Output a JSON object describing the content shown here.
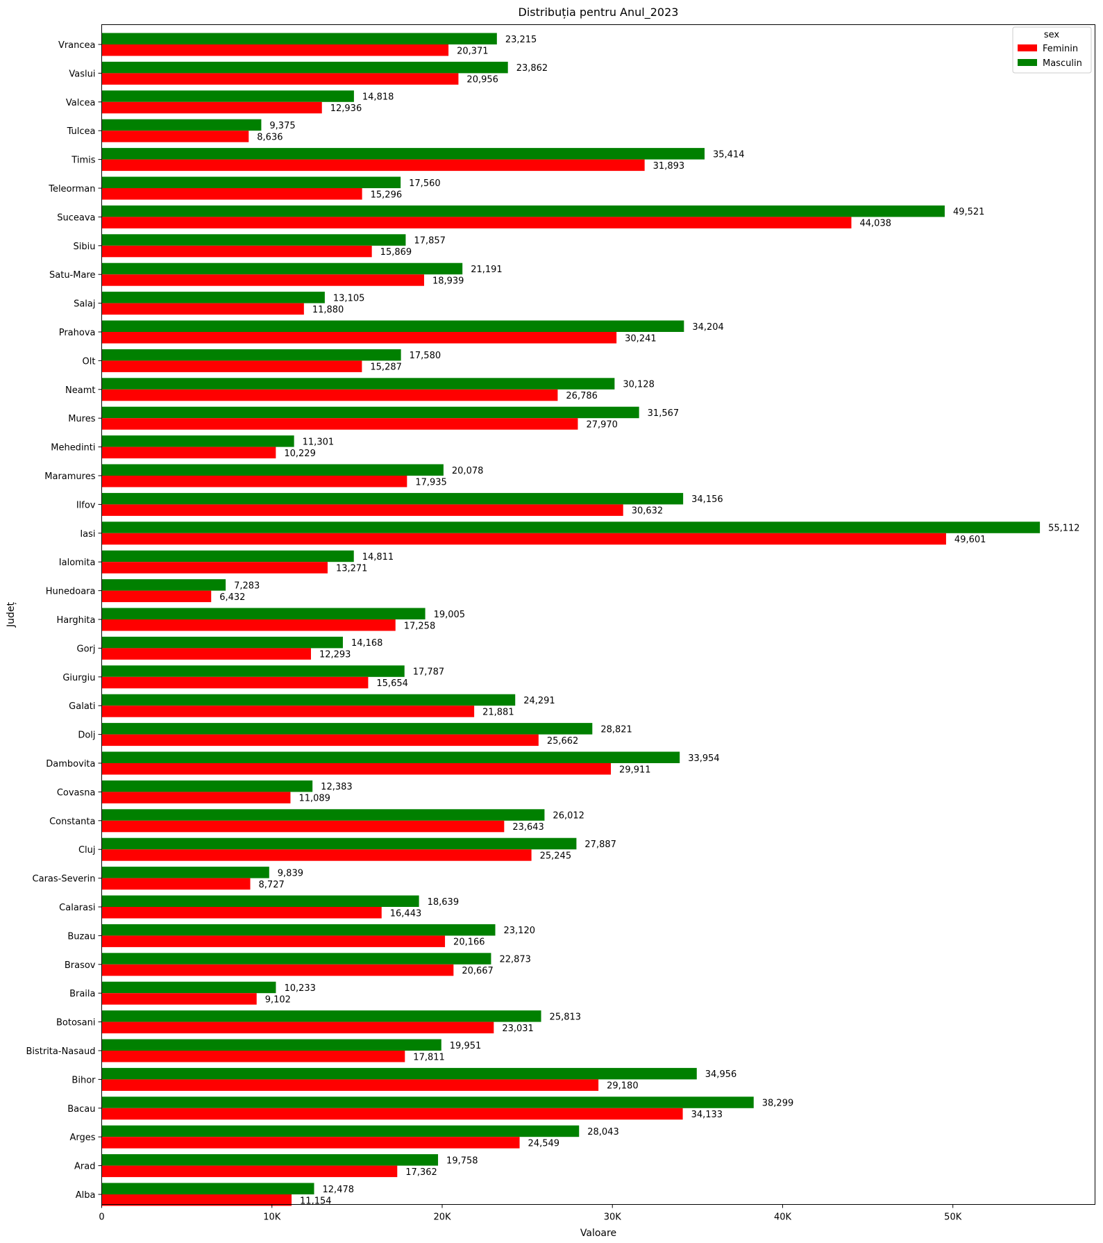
{
  "chart_data": {
    "type": "bar",
    "orientation": "horizontal",
    "title": "Distribuția pentru Anul_2023",
    "xlabel": "Valoare",
    "ylabel": "Județ",
    "xlim": [
      0,
      58350
    ],
    "xticks": [
      0,
      10000,
      20000,
      30000,
      40000,
      50000
    ],
    "xtick_labels": [
      "0",
      "10K",
      "20K",
      "30K",
      "40K",
      "50K"
    ],
    "grid": false,
    "legend": {
      "title": "sex",
      "position": "top-right",
      "entries": [
        {
          "name": "Feminin",
          "color": "#ff0000"
        },
        {
          "name": "Masculin",
          "color": "#008000"
        }
      ]
    },
    "categories": [
      "Vrancea",
      "Vaslui",
      "Valcea",
      "Tulcea",
      "Timis",
      "Teleorman",
      "Suceava",
      "Sibiu",
      "Satu-Mare",
      "Salaj",
      "Prahova",
      "Olt",
      "Neamt",
      "Mures",
      "Mehedinti",
      "Maramures",
      "Ilfov",
      "Iasi",
      "Ialomita",
      "Hunedoara",
      "Harghita",
      "Gorj",
      "Giurgiu",
      "Galati",
      "Dolj",
      "Dambovita",
      "Covasna",
      "Constanta",
      "Cluj",
      "Caras-Severin",
      "Calarasi",
      "Buzau",
      "Brasov",
      "Braila",
      "Botosani",
      "Bistrita-Nasaud",
      "Bihor",
      "Bacau",
      "Arges",
      "Arad",
      "Alba"
    ],
    "series": [
      {
        "name": "Feminin",
        "color": "#ff0000",
        "values": [
          20371,
          20956,
          12936,
          8636,
          31893,
          15296,
          44038,
          15869,
          18939,
          11880,
          30241,
          15287,
          26786,
          27970,
          10229,
          17935,
          30632,
          49601,
          13271,
          6432,
          17258,
          12293,
          15654,
          21881,
          25662,
          29911,
          11089,
          23643,
          25245,
          8727,
          16443,
          20166,
          20667,
          9102,
          23031,
          17811,
          29180,
          34133,
          24549,
          17362,
          11154
        ],
        "labels": [
          "20,371",
          "20,956",
          "12,936",
          "8,636",
          "31,893",
          "15,296",
          "44,038",
          "15,869",
          "18,939",
          "11,880",
          "30,241",
          "15,287",
          "26,786",
          "27,970",
          "10,229",
          "17,935",
          "30,632",
          "49,601",
          "13,271",
          "6,432",
          "17,258",
          "12,293",
          "15,654",
          "21,881",
          "25,662",
          "29,911",
          "11,089",
          "23,643",
          "25,245",
          "8,727",
          "16,443",
          "20,166",
          "20,667",
          "9,102",
          "23,031",
          "17,811",
          "29,180",
          "34,133",
          "24,549",
          "17,362",
          "11,154"
        ]
      },
      {
        "name": "Masculin",
        "color": "#008000",
        "values": [
          23215,
          23862,
          14818,
          9375,
          35414,
          17560,
          49521,
          17857,
          21191,
          13105,
          34204,
          17580,
          30128,
          31567,
          11301,
          20078,
          34156,
          55112,
          14811,
          7283,
          19005,
          14168,
          17787,
          24291,
          28821,
          33954,
          12383,
          26012,
          27887,
          9839,
          18639,
          23120,
          22873,
          10233,
          25813,
          19951,
          34956,
          38299,
          28043,
          19758,
          12478
        ],
        "labels": [
          "23,215",
          "23,862",
          "14,818",
          "9,375",
          "35,414",
          "17,560",
          "49,521",
          "17,857",
          "21,191",
          "13,105",
          "34,204",
          "17,580",
          "30,128",
          "31,567",
          "11,301",
          "20,078",
          "34,156",
          "55,112",
          "14,811",
          "7,283",
          "19,005",
          "14,168",
          "17,787",
          "24,291",
          "28,821",
          "33,954",
          "12,383",
          "26,012",
          "27,887",
          "9,839",
          "18,639",
          "23,120",
          "22,873",
          "10,233",
          "25,813",
          "19,951",
          "34,956",
          "38,299",
          "28,043",
          "19,758",
          "12,478"
        ]
      }
    ]
  }
}
